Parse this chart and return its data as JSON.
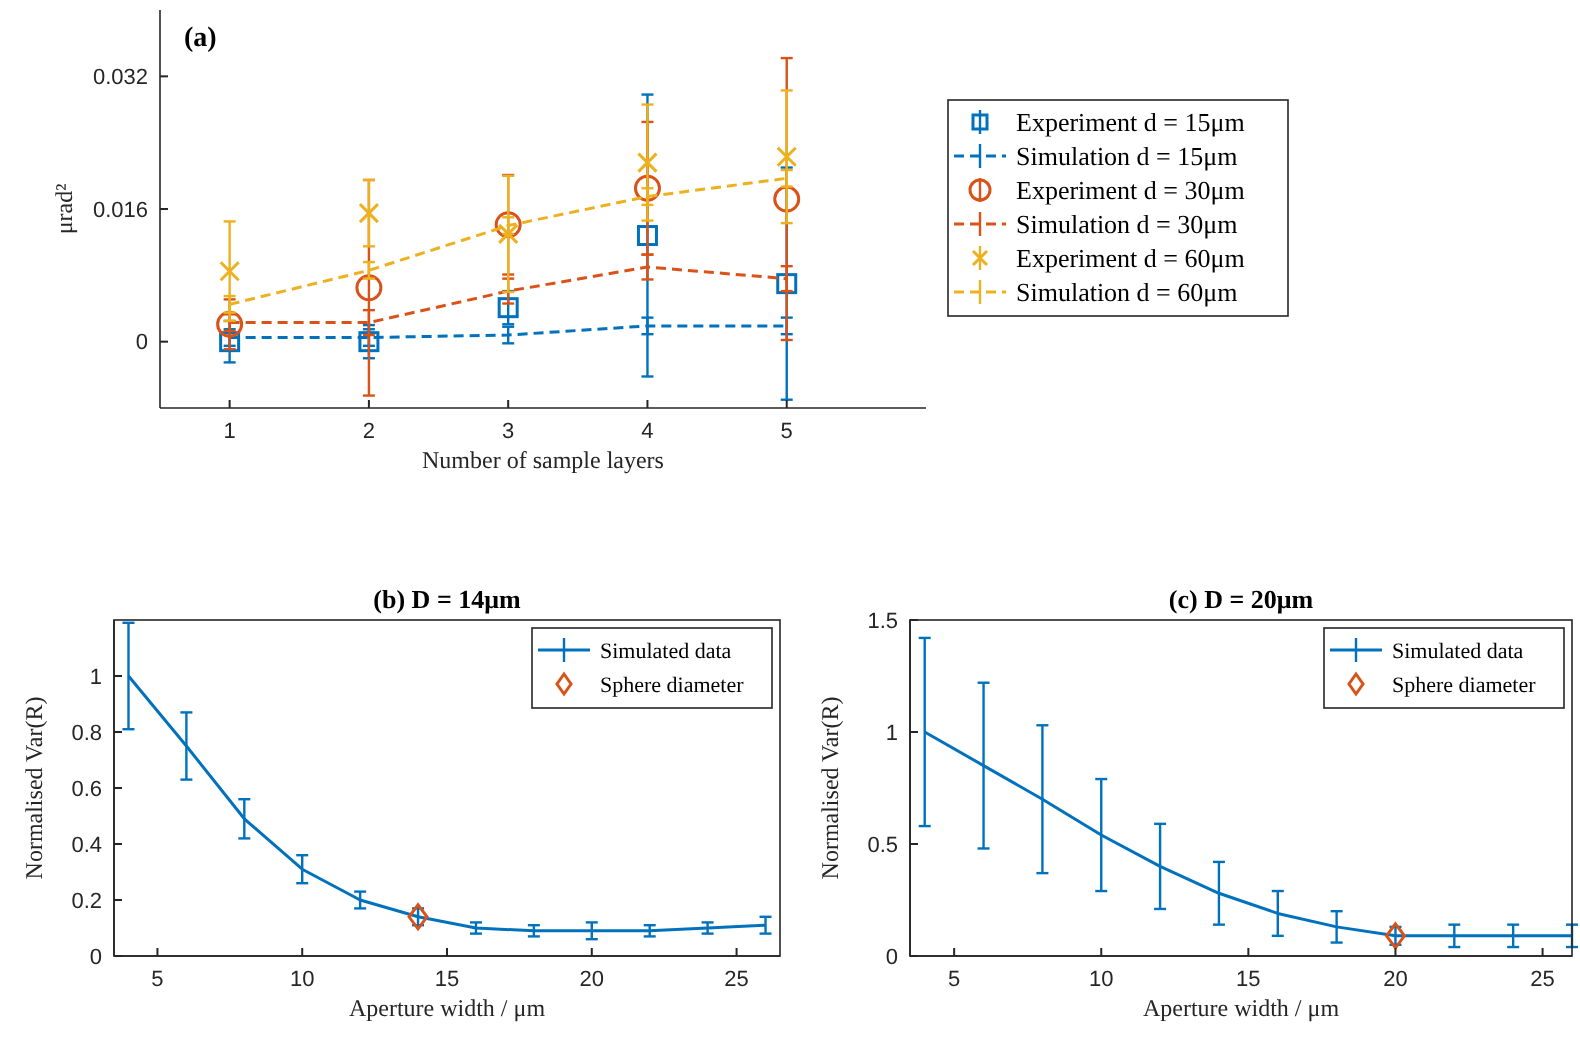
{
  "chart_data": [
    {
      "type": "line",
      "title": "(a)",
      "xlabel": "Number of sample layers",
      "ylabel": "μrad²",
      "x": [
        1,
        2,
        3,
        4,
        5
      ],
      "xlim": [
        0.5,
        6
      ],
      "ylim": [
        -0.008,
        0.04
      ],
      "xticks": [
        1,
        2,
        3,
        4,
        5
      ],
      "yticks": [
        0,
        0.016,
        0.032
      ],
      "legend": "right",
      "series": [
        {
          "name": "Experiment d = 15μm",
          "type": "scatter",
          "marker": "square",
          "color": "#0072bd",
          "values": [
            0,
            0,
            0.0041,
            0.0128,
            0.007
          ],
          "errors": [
            0.0025,
            0.002,
            0.002,
            0.017,
            0.014
          ]
        },
        {
          "name": "Simulation d = 15μm",
          "type": "line",
          "line_style": "dashed",
          "marker": "none",
          "color": "#0072bd",
          "values": [
            0.0005,
            0.0005,
            0.0008,
            0.0019,
            0.0019
          ],
          "errors": [
            0.001,
            0.001,
            0.001,
            0.001,
            0.001
          ]
        },
        {
          "name": "Experiment d = 30μm",
          "type": "scatter",
          "marker": "circle",
          "color": "#d95319",
          "values": [
            0.0021,
            0.0065,
            0.0141,
            0.0185,
            0.0172
          ],
          "errors": [
            0.003,
            0.013,
            0.006,
            0.008,
            0.017
          ]
        },
        {
          "name": "Simulation d = 30μm",
          "type": "line",
          "line_style": "dashed",
          "marker": "none",
          "color": "#d95319",
          "values": [
            0.0023,
            0.0023,
            0.0061,
            0.009,
            0.0076
          ],
          "errors": [
            0.001,
            0.0015,
            0.0015,
            0.0015,
            0.0015
          ]
        },
        {
          "name": "Experiment d = 60μm",
          "type": "scatter",
          "marker": "cross",
          "color": "#edb120",
          "values": [
            0.0085,
            0.0155,
            0.013,
            0.0216,
            0.0223
          ],
          "errors": [
            0.006,
            0.004,
            0.007,
            0.007,
            0.008
          ]
        },
        {
          "name": "Simulation d = 60μm",
          "type": "line",
          "line_style": "dashed",
          "marker": "none",
          "color": "#edb120",
          "values": [
            0.0045,
            0.0086,
            0.014,
            0.0175,
            0.0197
          ],
          "errors": [
            0.001,
            0.001,
            0.001,
            0.001,
            0.001
          ]
        }
      ]
    },
    {
      "type": "line",
      "title": "(b) D = 14μm",
      "xlabel": "Aperture width / μm",
      "ylabel": "Normalised Var(R)",
      "xlim": [
        3.5,
        26.5
      ],
      "ylim": [
        0,
        1.2
      ],
      "xticks": [
        5,
        10,
        15,
        20,
        25
      ],
      "yticks": [
        0,
        0.2,
        0.4,
        0.6,
        0.8,
        1
      ],
      "legend": "top right",
      "series": [
        {
          "name": "Simulated data",
          "type": "line",
          "marker": "none",
          "line_style": "solid",
          "color": "#0072bd",
          "x": [
            4,
            6,
            8,
            10,
            12,
            14,
            16,
            18,
            20,
            22,
            24,
            26
          ],
          "values": [
            1.0,
            0.75,
            0.49,
            0.31,
            0.2,
            0.14,
            0.1,
            0.09,
            0.09,
            0.09,
            0.1,
            0.11
          ],
          "errors": [
            0.19,
            0.12,
            0.07,
            0.05,
            0.03,
            0.03,
            0.02,
            0.02,
            0.03,
            0.02,
            0.02,
            0.03
          ]
        },
        {
          "name": "Sphere diameter",
          "type": "scatter",
          "marker": "diamond",
          "color": "#d95319",
          "x": [
            14
          ],
          "values": [
            0.14
          ]
        }
      ]
    },
    {
      "type": "line",
      "title": "(c) D = 20μm",
      "xlabel": "Aperture width / μm",
      "ylabel": "Normalised Var(R)",
      "xlim": [
        3.5,
        26
      ],
      "ylim": [
        0,
        1.5
      ],
      "xticks": [
        5,
        10,
        15,
        20,
        25
      ],
      "yticks": [
        0,
        0.5,
        1,
        1.5
      ],
      "legend": "top right",
      "series": [
        {
          "name": "Simulated data",
          "type": "line",
          "marker": "none",
          "line_style": "solid",
          "color": "#0072bd",
          "x": [
            4,
            6,
            8,
            10,
            12,
            14,
            16,
            18,
            20,
            22,
            24,
            26
          ],
          "values": [
            1.0,
            0.85,
            0.7,
            0.54,
            0.4,
            0.28,
            0.19,
            0.13,
            0.09,
            0.09,
            0.09,
            0.09
          ],
          "errors": [
            0.42,
            0.37,
            0.33,
            0.25,
            0.19,
            0.14,
            0.1,
            0.07,
            0.04,
            0.05,
            0.05,
            0.05
          ]
        },
        {
          "name": "Sphere diameter",
          "type": "scatter",
          "marker": "diamond",
          "color": "#d95319",
          "x": [
            20
          ],
          "values": [
            0.09
          ]
        }
      ]
    }
  ]
}
